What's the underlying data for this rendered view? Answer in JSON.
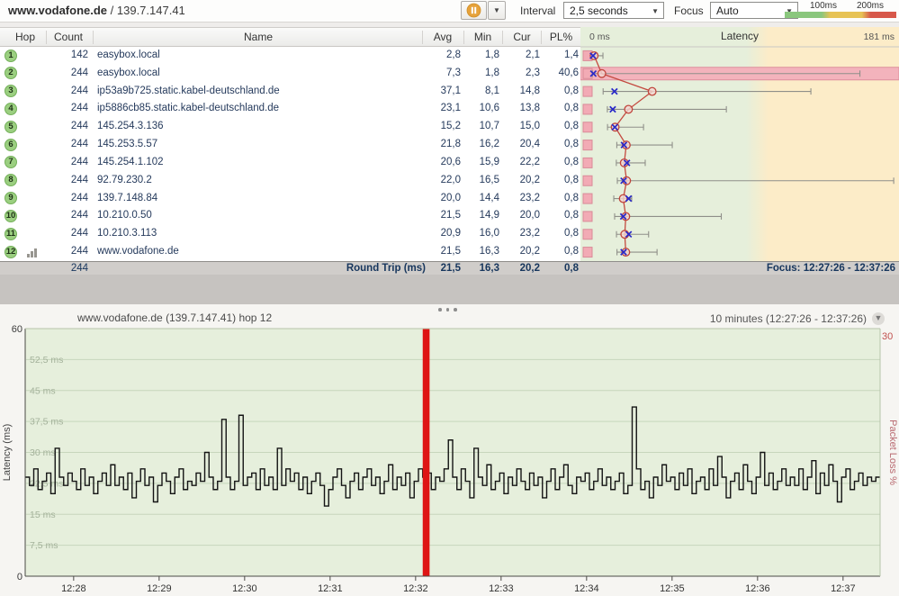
{
  "titlebar": {
    "host": "www.vodafone.de",
    "separator": " / ",
    "ip": "139.7.147.41"
  },
  "toolbar": {
    "interval_label": "Interval",
    "interval_value": "2,5 seconds",
    "focus_label": "Focus",
    "focus_value": "Auto",
    "scale_labels": [
      "100ms",
      "200ms"
    ]
  },
  "table": {
    "headers": {
      "hop": "Hop",
      "count": "Count",
      "name": "Name",
      "avg": "Avg",
      "min": "Min",
      "cur": "Cur",
      "pl": "PL%"
    },
    "graph_header": {
      "left": "0 ms",
      "title": "Latency",
      "right": "181 ms"
    },
    "rows": [
      {
        "hop": "1",
        "count": "142",
        "name": "easybox.local",
        "avg": "2,8",
        "min": "1,8",
        "cur": "2,1",
        "pl": "1,4",
        "focused": false
      },
      {
        "hop": "2",
        "count": "244",
        "name": "easybox.local",
        "avg": "7,3",
        "min": "1,8",
        "cur": "2,3",
        "pl": "40,6",
        "focused": false
      },
      {
        "hop": "3",
        "count": "244",
        "name": "ip53a9b725.static.kabel-deutschland.de",
        "avg": "37,1",
        "min": "8,1",
        "cur": "14,8",
        "pl": "0,8",
        "focused": false
      },
      {
        "hop": "4",
        "count": "244",
        "name": "ip5886cb85.static.kabel-deutschland.de",
        "avg": "23,1",
        "min": "10,6",
        "cur": "13,8",
        "pl": "0,8",
        "focused": false
      },
      {
        "hop": "5",
        "count": "244",
        "name": "145.254.3.136",
        "avg": "15,2",
        "min": "10,7",
        "cur": "15,0",
        "pl": "0,8",
        "focused": false
      },
      {
        "hop": "6",
        "count": "244",
        "name": "145.253.5.57",
        "avg": "21,8",
        "min": "16,2",
        "cur": "20,4",
        "pl": "0,8",
        "focused": false
      },
      {
        "hop": "7",
        "count": "244",
        "name": "145.254.1.102",
        "avg": "20,6",
        "min": "15,9",
        "cur": "22,2",
        "pl": "0,8",
        "focused": false
      },
      {
        "hop": "8",
        "count": "244",
        "name": "92.79.230.2",
        "avg": "22,0",
        "min": "16,5",
        "cur": "20,2",
        "pl": "0,8",
        "focused": false
      },
      {
        "hop": "9",
        "count": "244",
        "name": "139.7.148.84",
        "avg": "20,0",
        "min": "14,4",
        "cur": "23,2",
        "pl": "0,8",
        "focused": false
      },
      {
        "hop": "10",
        "count": "244",
        "name": "10.210.0.50",
        "avg": "21,5",
        "min": "14,9",
        "cur": "20,0",
        "pl": "0,8",
        "focused": false
      },
      {
        "hop": "11",
        "count": "244",
        "name": "10.210.3.113",
        "avg": "20,9",
        "min": "16,0",
        "cur": "23,2",
        "pl": "0,8",
        "focused": false
      },
      {
        "hop": "12",
        "count": "244",
        "name": "www.vodafone.de",
        "avg": "21,5",
        "min": "16,3",
        "cur": "20,2",
        "pl": "0,8",
        "focused": true
      }
    ],
    "footer": {
      "count": "244",
      "label": "Round Trip (ms)",
      "avg": "21,5",
      "min": "16,3",
      "cur": "20,2",
      "pl": "0,8",
      "focus": "Focus: 12:27:26 - 12:37:26"
    }
  },
  "timeline_header": {
    "title": "www.vodafone.de (139.7.147.41) hop 12",
    "range": "10 minutes (12:27:26 - 12:37:26)"
  },
  "colors": {
    "zone_green": "#e6efdb",
    "zone_orange": "#fcecc8",
    "loss_pink": "#f2abb5",
    "loss_pink_border": "#d98b98",
    "highlight_band": "#f3b3bc",
    "highlight_border": "#dd8f9c",
    "avg_red": "#c0453c",
    "cur_blue": "#2929c8",
    "range_gray": "#8f8f89",
    "loss_bar_red": "#de1414",
    "plot_green": "#e6efdc",
    "grid_green": "#c7d6bc",
    "grid_label": "#a4b29b",
    "right_axis_red": "#c0504d",
    "line_black": "#141414"
  },
  "chart_data": [
    {
      "type": "scatter",
      "title": "Latency",
      "x_axis": {
        "left_label": "0 ms",
        "right_label": "181 ms",
        "range_ms": [
          0,
          181
        ],
        "green_zone_max_ms": 100
      },
      "legend": {
        "circle": "average latency",
        "x": "current latency",
        "bar": "min-max range",
        "square": "packet loss"
      },
      "hops": [
        {
          "hop": 1,
          "avg": 2.8,
          "min": 1.8,
          "cur": 2.1,
          "max": 8,
          "highlight": false
        },
        {
          "hop": 2,
          "avg": 7.3,
          "min": 1.8,
          "cur": 2.3,
          "max": 160,
          "highlight": true
        },
        {
          "hop": 3,
          "avg": 37.1,
          "min": 8.1,
          "cur": 14.8,
          "max": 131,
          "highlight": false
        },
        {
          "hop": 4,
          "avg": 23.1,
          "min": 10.6,
          "cur": 13.8,
          "max": 81,
          "highlight": false
        },
        {
          "hop": 5,
          "avg": 15.2,
          "min": 10.7,
          "cur": 15.0,
          "max": 32,
          "highlight": false
        },
        {
          "hop": 6,
          "avg": 21.8,
          "min": 16.2,
          "cur": 20.4,
          "max": 49,
          "highlight": false
        },
        {
          "hop": 7,
          "avg": 20.6,
          "min": 15.9,
          "cur": 22.2,
          "max": 33,
          "highlight": false
        },
        {
          "hop": 8,
          "avg": 22.0,
          "min": 16.5,
          "cur": 20.2,
          "max": 180,
          "highlight": false
        },
        {
          "hop": 9,
          "avg": 20.0,
          "min": 14.4,
          "cur": 23.2,
          "max": 25,
          "highlight": false
        },
        {
          "hop": 10,
          "avg": 21.5,
          "min": 14.9,
          "cur": 20.0,
          "max": 78,
          "highlight": false
        },
        {
          "hop": 11,
          "avg": 20.9,
          "min": 16.0,
          "cur": 23.2,
          "max": 35,
          "highlight": false
        },
        {
          "hop": 12,
          "avg": 21.5,
          "min": 16.3,
          "cur": 20.2,
          "max": 40,
          "highlight": false
        }
      ]
    },
    {
      "type": "line",
      "title": "www.vodafone.de (139.7.147.41) hop 12",
      "ylabel": "Latency (ms)",
      "ylabel_right": "Packet Loss %",
      "ylim": [
        0,
        60
      ],
      "ylim_right": [
        0,
        30
      ],
      "y_top_label": "60",
      "y_bottom_label": "0",
      "y_right_top_label": "30",
      "gridlines": [
        {
          "v": 52.5,
          "label": "52,5 ms"
        },
        {
          "v": 45,
          "label": "45 ms"
        },
        {
          "v": 37.5,
          "label": "37,5 ms"
        },
        {
          "v": 30,
          "label": "30 ms"
        },
        {
          "v": 22.5,
          "label": "22,5 ms"
        },
        {
          "v": 15,
          "label": "15 ms"
        },
        {
          "v": 7.5,
          "label": "7,5 ms"
        }
      ],
      "x_ticks": [
        "12:28",
        "12:29",
        "12:30",
        "12:31",
        "12:32",
        "12:33",
        "12:34",
        "12:35",
        "12:36",
        "12:37"
      ],
      "duration_seconds": 600,
      "first_tick_offset_seconds": 34,
      "tick_spacing_seconds": 60,
      "sample_interval_seconds": 3,
      "loss_event": {
        "start_index": 93,
        "end_index": 94.6
      },
      "values_ms": [
        24,
        22,
        26,
        21,
        23,
        25,
        20,
        31,
        24,
        22,
        25,
        23,
        21,
        26,
        22,
        24,
        20,
        23,
        25,
        22,
        27,
        22,
        24,
        21,
        25,
        19,
        23,
        26,
        22,
        24,
        18,
        22,
        25,
        23,
        20,
        24,
        26,
        21,
        23,
        22,
        25,
        23,
        30,
        24,
        21,
        23,
        38,
        24,
        21,
        23,
        39,
        22,
        24,
        25,
        21,
        26,
        22,
        24,
        21,
        31,
        22,
        26,
        23,
        25,
        21,
        24,
        20,
        23,
        25,
        22,
        17,
        21,
        24,
        26,
        22,
        19,
        23,
        25,
        21,
        24,
        26,
        22,
        24,
        20,
        23,
        27,
        21,
        24,
        22,
        25,
        19,
        23,
        26,
        24,
        25,
        21,
        24,
        23,
        26,
        33,
        24,
        21,
        26,
        23,
        19,
        31,
        24,
        22,
        27,
        21,
        23,
        25,
        20,
        24,
        22,
        26,
        23,
        21,
        25,
        22,
        24,
        19,
        23,
        26,
        21,
        24,
        27,
        22,
        20,
        24,
        23,
        25,
        21,
        23,
        26,
        22,
        24,
        21,
        23,
        25,
        20,
        22,
        41,
        26,
        21,
        23,
        19,
        24,
        22,
        27,
        23,
        24,
        21,
        25,
        22,
        26,
        20,
        23,
        24,
        21,
        26,
        22,
        29,
        24,
        19,
        23,
        25,
        21,
        27,
        23,
        20,
        24,
        30,
        22,
        25,
        21,
        23,
        26,
        22,
        24,
        22,
        26,
        21,
        24,
        28,
        20,
        25,
        22,
        27,
        23,
        18,
        24,
        26,
        21,
        23,
        25,
        22,
        24,
        23,
        24
      ]
    }
  ]
}
